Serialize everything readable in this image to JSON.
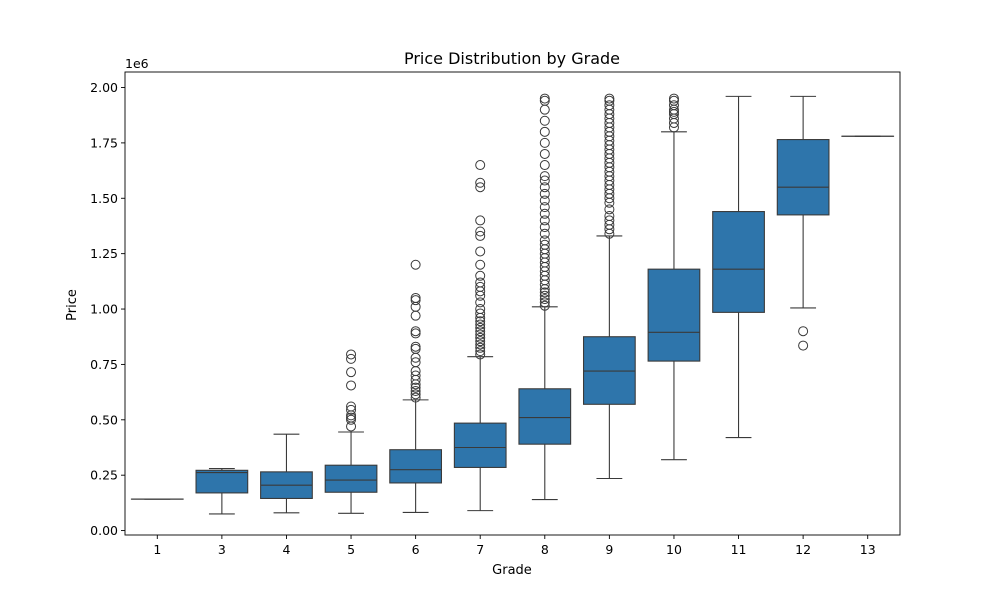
{
  "chart_data": {
    "type": "box",
    "title": "Price Distribution by Grade",
    "xlabel": "Grade",
    "ylabel": "Price",
    "y_offset_label": "1e6",
    "ylim": [
      -20000,
      2070000
    ],
    "yticks": [
      0,
      250000,
      500000,
      750000,
      1000000,
      1250000,
      1500000,
      1750000,
      2000000
    ],
    "ytick_labels": [
      "0.00",
      "0.25",
      "0.50",
      "0.75",
      "1.00",
      "1.25",
      "1.50",
      "1.75",
      "2.00"
    ],
    "box_color": "#2e75ab",
    "line_color": "#3a3a3a",
    "categories": [
      "1",
      "3",
      "4",
      "5",
      "6",
      "7",
      "8",
      "9",
      "10",
      "11",
      "12",
      "13"
    ],
    "boxes": [
      {
        "grade": "1",
        "whisker_low": 142000,
        "q1": 142000,
        "median": 142000,
        "q3": 142000,
        "whisker_high": 142000,
        "outliers": []
      },
      {
        "grade": "3",
        "whisker_low": 75000,
        "q1": 170000,
        "median": 262000,
        "q3": 272000,
        "whisker_high": 280000,
        "outliers": []
      },
      {
        "grade": "4",
        "whisker_low": 80000,
        "q1": 145000,
        "median": 205000,
        "q3": 265000,
        "whisker_high": 435000,
        "outliers": []
      },
      {
        "grade": "5",
        "whisker_low": 78000,
        "q1": 173000,
        "median": 228000,
        "q3": 295000,
        "whisker_high": 445000,
        "outliers": [
          470000,
          500000,
          510000,
          520000,
          545000,
          560000,
          655000,
          715000,
          775000,
          795000
        ]
      },
      {
        "grade": "6",
        "whisker_low": 82000,
        "q1": 215000,
        "median": 275000,
        "q3": 365000,
        "whisker_high": 590000,
        "outliers": [
          600000,
          615000,
          630000,
          645000,
          660000,
          680000,
          700000,
          720000,
          760000,
          780000,
          820000,
          830000,
          890000,
          900000,
          970000,
          1010000,
          1040000,
          1050000,
          1200000
        ]
      },
      {
        "grade": "7",
        "whisker_low": 90000,
        "q1": 285000,
        "median": 375000,
        "q3": 485000,
        "whisker_high": 785000,
        "outliers": [
          795000,
          810000,
          825000,
          840000,
          855000,
          870000,
          885000,
          900000,
          915000,
          930000,
          945000,
          960000,
          980000,
          1000000,
          1030000,
          1060000,
          1080000,
          1100000,
          1120000,
          1150000,
          1200000,
          1260000,
          1330000,
          1350000,
          1400000,
          1550000,
          1570000,
          1650000
        ]
      },
      {
        "grade": "8",
        "whisker_low": 140000,
        "q1": 390000,
        "median": 510000,
        "q3": 640000,
        "whisker_high": 1010000,
        "outliers": [
          1015000,
          1030000,
          1045000,
          1060000,
          1075000,
          1090000,
          1110000,
          1130000,
          1150000,
          1170000,
          1190000,
          1210000,
          1230000,
          1250000,
          1270000,
          1290000,
          1310000,
          1340000,
          1370000,
          1400000,
          1430000,
          1460000,
          1490000,
          1520000,
          1550000,
          1580000,
          1600000,
          1650000,
          1700000,
          1750000,
          1800000,
          1850000,
          1900000,
          1940000,
          1950000
        ]
      },
      {
        "grade": "9",
        "whisker_low": 235000,
        "q1": 570000,
        "median": 720000,
        "q3": 875000,
        "whisker_high": 1330000,
        "outliers": [
          1340000,
          1360000,
          1380000,
          1400000,
          1420000,
          1450000,
          1480000,
          1500000,
          1520000,
          1540000,
          1560000,
          1580000,
          1600000,
          1620000,
          1640000,
          1660000,
          1680000,
          1700000,
          1720000,
          1740000,
          1760000,
          1780000,
          1800000,
          1820000,
          1840000,
          1860000,
          1880000,
          1900000,
          1920000,
          1940000,
          1950000
        ]
      },
      {
        "grade": "10",
        "whisker_low": 320000,
        "q1": 765000,
        "median": 895000,
        "q3": 1180000,
        "whisker_high": 1800000,
        "outliers": [
          1820000,
          1840000,
          1860000,
          1880000,
          1890000,
          1900000,
          1920000,
          1940000,
          1950000
        ]
      },
      {
        "grade": "11",
        "whisker_low": 420000,
        "q1": 985000,
        "median": 1180000,
        "q3": 1440000,
        "whisker_high": 1960000,
        "outliers": []
      },
      {
        "grade": "12",
        "whisker_low": 1005000,
        "q1": 1425000,
        "median": 1550000,
        "q3": 1765000,
        "whisker_high": 1960000,
        "outliers": [
          835000,
          900000
        ]
      },
      {
        "grade": "13",
        "whisker_low": 1780000,
        "q1": 1780000,
        "median": 1780000,
        "q3": 1780000,
        "whisker_high": 1780000,
        "outliers": []
      }
    ]
  }
}
